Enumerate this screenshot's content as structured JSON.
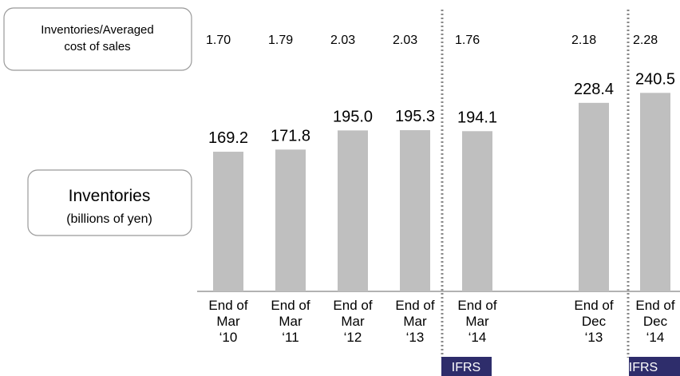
{
  "chart_data": {
    "type": "bar",
    "color": "#bfbfbf",
    "series_label": [
      "Inventories",
      "(billions of yen)"
    ],
    "categories": [
      [
        "End of",
        "Mar",
        "‘10"
      ],
      [
        "End of",
        "Mar",
        "‘11"
      ],
      [
        "End of",
        "Mar",
        "‘12"
      ],
      [
        "End of",
        "Mar",
        "‘13"
      ],
      [
        "End of",
        "Mar",
        "‘14"
      ],
      null,
      [
        "End of",
        "Dec",
        "‘13"
      ],
      [
        "End of",
        "Dec",
        "‘14"
      ]
    ],
    "values": [
      169.2,
      171.8,
      195.0,
      195.3,
      194.1,
      null,
      228.4,
      240.5
    ],
    "value_labels": [
      "169.2",
      "171.8",
      "195.0",
      "195.3",
      "194.1",
      null,
      "228.4",
      "240.5"
    ],
    "ratio_row": {
      "label": [
        "Inventories/Averaged",
        "cost of sales"
      ],
      "values": [
        1.7,
        1.79,
        2.03,
        2.03,
        1.76,
        null,
        2.18,
        2.28
      ],
      "value_labels": [
        "1.70",
        "1.79",
        "2.03",
        "2.03",
        "1.76",
        null,
        "2.18",
        "2.28"
      ]
    },
    "annotations": [
      "IFRS",
      "IFRS"
    ]
  }
}
